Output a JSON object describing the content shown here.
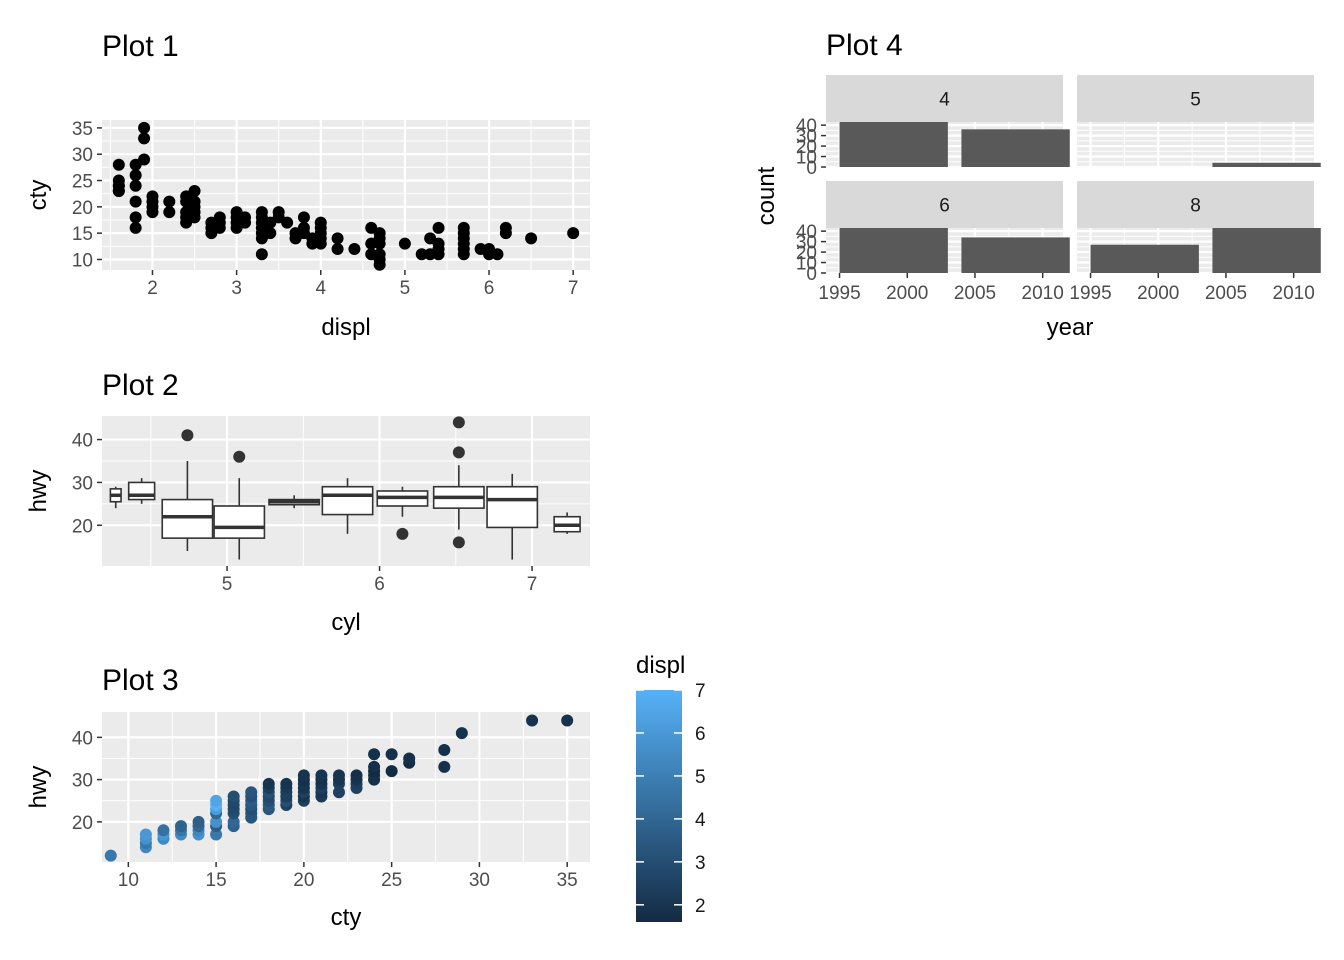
{
  "chart_data": [
    {
      "id": "p1",
      "type": "scatter",
      "title": "Plot 1",
      "xlabel": "displ",
      "ylabel": "cty",
      "xlim": [
        1.4,
        7.2
      ],
      "ylim": [
        8,
        36.5
      ],
      "xticks": [
        2,
        3,
        4,
        5,
        6,
        7
      ],
      "yticks": [
        10,
        15,
        20,
        25,
        30,
        35
      ],
      "points": [
        [
          1.6,
          28
        ],
        [
          1.6,
          25
        ],
        [
          1.6,
          24
        ],
        [
          1.6,
          23
        ],
        [
          1.6,
          23
        ],
        [
          1.6,
          24
        ],
        [
          1.8,
          28
        ],
        [
          1.8,
          26
        ],
        [
          1.8,
          24
        ],
        [
          1.8,
          21
        ],
        [
          1.8,
          18
        ],
        [
          1.8,
          16
        ],
        [
          1.9,
          35
        ],
        [
          1.9,
          33
        ],
        [
          1.9,
          29
        ],
        [
          2.0,
          21
        ],
        [
          2.0,
          20
        ],
        [
          2.0,
          19
        ],
        [
          2.0,
          22
        ],
        [
          2.2,
          21
        ],
        [
          2.2,
          19
        ],
        [
          2.4,
          21
        ],
        [
          2.4,
          19
        ],
        [
          2.4,
          18
        ],
        [
          2.4,
          17
        ],
        [
          2.4,
          22
        ],
        [
          2.5,
          23
        ],
        [
          2.5,
          20
        ],
        [
          2.5,
          19
        ],
        [
          2.5,
          18
        ],
        [
          2.5,
          21
        ],
        [
          2.7,
          16
        ],
        [
          2.7,
          15
        ],
        [
          2.7,
          17
        ],
        [
          2.8,
          18
        ],
        [
          2.8,
          16
        ],
        [
          2.8,
          17
        ],
        [
          3.0,
          19
        ],
        [
          3.0,
          17
        ],
        [
          3.0,
          16
        ],
        [
          3.0,
          18
        ],
        [
          3.1,
          18
        ],
        [
          3.1,
          17
        ],
        [
          3.3,
          19
        ],
        [
          3.3,
          18
        ],
        [
          3.3,
          17
        ],
        [
          3.3,
          16
        ],
        [
          3.3,
          15
        ],
        [
          3.3,
          14
        ],
        [
          3.3,
          11
        ],
        [
          3.4,
          15
        ],
        [
          3.4,
          17
        ],
        [
          3.5,
          19
        ],
        [
          3.5,
          18
        ],
        [
          3.6,
          17
        ],
        [
          3.7,
          15
        ],
        [
          3.7,
          14
        ],
        [
          3.8,
          18
        ],
        [
          3.8,
          16
        ],
        [
          3.8,
          15
        ],
        [
          3.9,
          14
        ],
        [
          3.9,
          13
        ],
        [
          4.0,
          17
        ],
        [
          4.0,
          16
        ],
        [
          4.0,
          15
        ],
        [
          4.0,
          14
        ],
        [
          4.0,
          13
        ],
        [
          4.2,
          14
        ],
        [
          4.2,
          12
        ],
        [
          4.4,
          12
        ],
        [
          4.6,
          16
        ],
        [
          4.6,
          13
        ],
        [
          4.6,
          11
        ],
        [
          4.7,
          15
        ],
        [
          4.7,
          14
        ],
        [
          4.7,
          13
        ],
        [
          4.7,
          11
        ],
        [
          4.7,
          10
        ],
        [
          4.7,
          9
        ],
        [
          5.0,
          13
        ],
        [
          5.2,
          11
        ],
        [
          5.3,
          14
        ],
        [
          5.3,
          11
        ],
        [
          5.4,
          16
        ],
        [
          5.4,
          13
        ],
        [
          5.4,
          12
        ],
        [
          5.4,
          11
        ],
        [
          5.7,
          16
        ],
        [
          5.7,
          15
        ],
        [
          5.7,
          14
        ],
        [
          5.7,
          13
        ],
        [
          5.7,
          12
        ],
        [
          5.7,
          11
        ],
        [
          5.9,
          12
        ],
        [
          6.0,
          12
        ],
        [
          6.0,
          11
        ],
        [
          6.1,
          11
        ],
        [
          6.2,
          16
        ],
        [
          6.2,
          15
        ],
        [
          6.5,
          14
        ],
        [
          7.0,
          15
        ]
      ]
    },
    {
      "id": "p2",
      "type": "box",
      "title": "Plot 2",
      "xlabel": "cyl",
      "ylabel": "hwy",
      "xlim": [
        4.18,
        7.38
      ],
      "ylim": [
        10.5,
        45.5
      ],
      "xticks": [
        5,
        6,
        7
      ],
      "yticks": [
        20,
        30,
        40
      ],
      "boxes": [
        {
          "x": 4.27,
          "w": 0.07,
          "lo": 24,
          "q1": 25.5,
          "med": 27,
          "q3": 28.5,
          "hi": 29,
          "out": []
        },
        {
          "x": 4.44,
          "w": 0.17,
          "lo": 25,
          "q1": 26,
          "med": 27,
          "q3": 30,
          "hi": 31,
          "out": []
        },
        {
          "x": 4.74,
          "w": 0.33,
          "lo": 14,
          "q1": 17,
          "med": 22,
          "q3": 26,
          "hi": 35,
          "out": [
            41
          ]
        },
        {
          "x": 5.08,
          "w": 0.33,
          "lo": 12,
          "q1": 17,
          "med": 19.5,
          "q3": 24.5,
          "hi": 31,
          "out": [
            36
          ]
        },
        {
          "x": 5.44,
          "w": 0.33,
          "lo": 24,
          "q1": 24.8,
          "med": 25.5,
          "q3": 26,
          "hi": 27,
          "out": []
        },
        {
          "x": 5.79,
          "w": 0.33,
          "lo": 18,
          "q1": 22.5,
          "med": 27,
          "q3": 29,
          "hi": 31,
          "out": []
        },
        {
          "x": 6.15,
          "w": 0.33,
          "lo": 22,
          "q1": 24.5,
          "med": 26.5,
          "q3": 28,
          "hi": 29,
          "out": [
            18
          ]
        },
        {
          "x": 6.52,
          "w": 0.33,
          "lo": 19,
          "q1": 24,
          "med": 26.5,
          "q3": 29,
          "hi": 34,
          "out": [
            44,
            37,
            16
          ]
        },
        {
          "x": 6.87,
          "w": 0.33,
          "lo": 12,
          "q1": 19.5,
          "med": 26,
          "q3": 29,
          "hi": 32,
          "out": []
        },
        {
          "x": 7.23,
          "w": 0.17,
          "lo": 18,
          "q1": 18.5,
          "med": 20,
          "q3": 22,
          "hi": 23,
          "out": []
        }
      ]
    },
    {
      "id": "p3",
      "type": "scatter",
      "title": "Plot 3",
      "xlabel": "cty",
      "ylabel": "hwy",
      "xlim": [
        8.5,
        36.3
      ],
      "ylim": [
        10.5,
        46
      ],
      "xticks": [
        10,
        15,
        20,
        25,
        30,
        35
      ],
      "yticks": [
        20,
        30,
        40
      ],
      "color": {
        "title": "displ",
        "min": 1.6,
        "max": 7.0,
        "low": "#132B43",
        "high": "#56B1F7",
        "breaks": [
          2,
          3,
          4,
          5,
          6,
          7
        ]
      },
      "points": [
        [
          9,
          12,
          4.7
        ],
        [
          11,
          14,
          5.3
        ],
        [
          11,
          15,
          4.7
        ],
        [
          11,
          16,
          5.7
        ],
        [
          11,
          17,
          6.0
        ],
        [
          12,
          16,
          5.4
        ],
        [
          12,
          17,
          5.9
        ],
        [
          12,
          18,
          4.4
        ],
        [
          13,
          17,
          5.4
        ],
        [
          13,
          18,
          4.6
        ],
        [
          13,
          19,
          3.9
        ],
        [
          14,
          17,
          5.7
        ],
        [
          14,
          18,
          5.3
        ],
        [
          14,
          19,
          4.0
        ],
        [
          14,
          20,
          3.7
        ],
        [
          15,
          17,
          4.7
        ],
        [
          15,
          19,
          3.7
        ],
        [
          15,
          20,
          5.7
        ],
        [
          15,
          22,
          4.0
        ],
        [
          15,
          23,
          6.2
        ],
        [
          15,
          24,
          7.0
        ],
        [
          15,
          25,
          6.5
        ],
        [
          16,
          19,
          3.8
        ],
        [
          16,
          20,
          4.0
        ],
        [
          16,
          22,
          3.0
        ],
        [
          16,
          23,
          2.8
        ],
        [
          16,
          24,
          2.7
        ],
        [
          16,
          25,
          2.8
        ],
        [
          16,
          26,
          3.0
        ],
        [
          17,
          21,
          3.3
        ],
        [
          17,
          22,
          3.3
        ],
        [
          17,
          23,
          3.0
        ],
        [
          17,
          24,
          3.4
        ],
        [
          17,
          25,
          3.6
        ],
        [
          17,
          26,
          3.1
        ],
        [
          17,
          27,
          3.3
        ],
        [
          18,
          23,
          3.3
        ],
        [
          18,
          24,
          3.5
        ],
        [
          18,
          25,
          3.0
        ],
        [
          18,
          26,
          2.8
        ],
        [
          18,
          27,
          3.1
        ],
        [
          18,
          28,
          2.4
        ],
        [
          18,
          29,
          2.0
        ],
        [
          19,
          24,
          2.5
        ],
        [
          19,
          25,
          3.0
        ],
        [
          19,
          26,
          2.4
        ],
        [
          19,
          27,
          2.5
        ],
        [
          19,
          28,
          2.2
        ],
        [
          19,
          29,
          2.0
        ],
        [
          20,
          25,
          2.4
        ],
        [
          20,
          26,
          2.0
        ],
        [
          20,
          27,
          2.5
        ],
        [
          20,
          28,
          2.0
        ],
        [
          20,
          29,
          2.0
        ],
        [
          20,
          30,
          1.8
        ],
        [
          20,
          31,
          2.0
        ],
        [
          21,
          26,
          2.2
        ],
        [
          21,
          27,
          2.0
        ],
        [
          21,
          28,
          2.4
        ],
        [
          21,
          29,
          2.0
        ],
        [
          21,
          30,
          1.8
        ],
        [
          21,
          31,
          2.0
        ],
        [
          22,
          27,
          2.5
        ],
        [
          22,
          29,
          2.4
        ],
        [
          22,
          30,
          2.0
        ],
        [
          22,
          31,
          2.0
        ],
        [
          23,
          28,
          2.5
        ],
        [
          23,
          29,
          2.4
        ],
        [
          23,
          30,
          2.0
        ],
        [
          23,
          31,
          1.8
        ],
        [
          24,
          30,
          1.8
        ],
        [
          24,
          31,
          1.8
        ],
        [
          24,
          32,
          1.6
        ],
        [
          24,
          33,
          1.8
        ],
        [
          24,
          36,
          1.8
        ],
        [
          25,
          32,
          1.6
        ],
        [
          25,
          36,
          1.8
        ],
        [
          26,
          34,
          1.6
        ],
        [
          26,
          35,
          1.8
        ],
        [
          28,
          33,
          1.8
        ],
        [
          28,
          37,
          1.8
        ],
        [
          29,
          41,
          1.9
        ],
        [
          33,
          44,
          1.9
        ],
        [
          35,
          44,
          1.9
        ]
      ]
    },
    {
      "id": "p4",
      "type": "bar",
      "title": "Plot 4",
      "xlabel": "year",
      "ylabel": "count",
      "facets": [
        "4",
        "5",
        "6",
        "8"
      ],
      "xlim": [
        1994,
        2011.5
      ],
      "xticks": [
        1995,
        2000,
        2005,
        2010
      ],
      "ylim": [
        0,
        43
      ],
      "yticks": [
        0,
        10,
        20,
        30,
        40
      ],
      "bar_width": 8,
      "series": [
        {
          "facet": "4",
          "years": [
            1999,
            2008
          ],
          "counts": [
            45,
            36
          ]
        },
        {
          "facet": "5",
          "years": [
            1999,
            2008
          ],
          "counts": [
            0,
            4
          ]
        },
        {
          "facet": "6",
          "years": [
            1999,
            2008
          ],
          "counts": [
            45,
            34
          ]
        },
        {
          "facet": "8",
          "years": [
            1999,
            2008
          ],
          "counts": [
            27,
            43
          ]
        }
      ]
    }
  ]
}
